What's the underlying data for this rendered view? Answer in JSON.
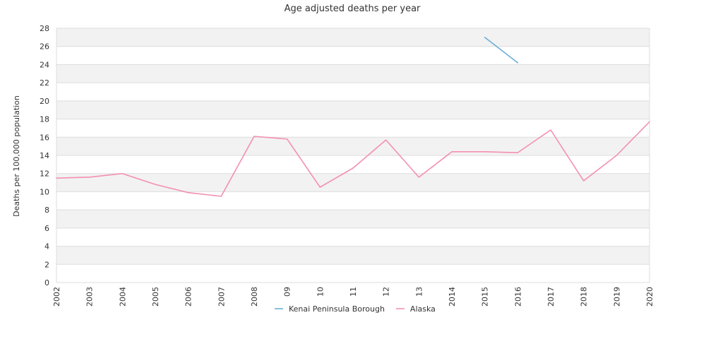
{
  "chart_data": {
    "type": "line",
    "title": "Age adjusted deaths per year",
    "xlabel": "",
    "ylabel": "Deaths per 100,000 population",
    "x": [
      "2002",
      "2003",
      "2004",
      "2005",
      "2006",
      "2007",
      "2008",
      "09",
      "10",
      "11",
      "12",
      "13",
      "2014",
      "2015",
      "2016",
      "2017",
      "2018",
      "2019",
      "2020"
    ],
    "ylim": [
      0,
      28
    ],
    "yticks": [
      0,
      2,
      4,
      6,
      8,
      10,
      12,
      14,
      16,
      18,
      20,
      22,
      24,
      26,
      28
    ],
    "grid": "horizontal alternating bands",
    "legend_position": "bottom",
    "series": [
      {
        "name": "Kenai Peninsula Borough",
        "color": "#6baed6",
        "values": [
          null,
          null,
          null,
          null,
          null,
          null,
          null,
          null,
          null,
          null,
          null,
          null,
          null,
          27.0,
          24.2,
          null,
          null,
          null,
          null
        ]
      },
      {
        "name": "Alaska",
        "color": "#f48fb1",
        "values": [
          11.5,
          11.6,
          12.0,
          10.8,
          9.9,
          9.5,
          16.1,
          15.8,
          10.5,
          12.6,
          15.7,
          11.6,
          14.4,
          14.4,
          14.3,
          16.8,
          11.2,
          14.0,
          17.7
        ]
      }
    ]
  }
}
